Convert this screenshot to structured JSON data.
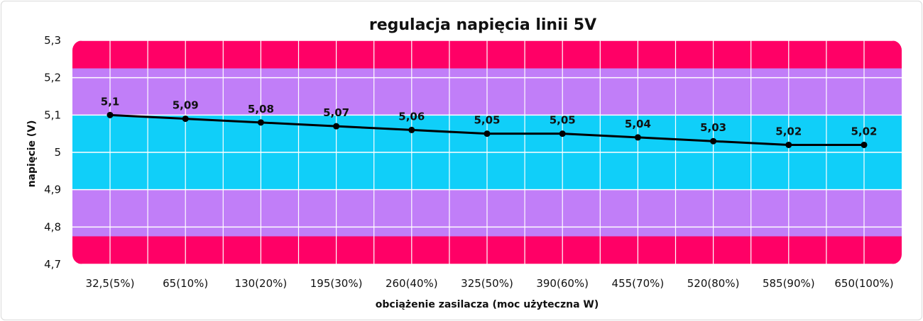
{
  "chart_data": {
    "type": "line",
    "title": "regulacja napięcia linii 5V",
    "xlabel": "obciążenie zasilacza (moc użyteczna W)",
    "ylabel": "napięcie (V)",
    "categories": [
      "32,5(5%)",
      "65(10%)",
      "130(20%)",
      "195(30%)",
      "260(40%)",
      "325(50%)",
      "390(60%)",
      "455(70%)",
      "520(80%)",
      "585(90%)",
      "650(100%)"
    ],
    "series": [
      {
        "values": [
          5.1,
          5.09,
          5.08,
          5.07,
          5.06,
          5.05,
          5.05,
          5.04,
          5.03,
          5.02,
          5.02
        ],
        "data_labels": [
          "5,1",
          "5,09",
          "5,08",
          "5,07",
          "5,06",
          "5,05",
          "5,05",
          "5,04",
          "5,03",
          "5,02",
          "5,02"
        ],
        "color": "#000000"
      }
    ],
    "ylim": [
      4.7,
      5.3
    ],
    "yticks": [
      {
        "value": 5.3,
        "label": "5,3"
      },
      {
        "value": 5.2,
        "label": "5,2"
      },
      {
        "value": 5.1,
        "label": "5,1"
      },
      {
        "value": 5.0,
        "label": "5"
      },
      {
        "value": 4.9,
        "label": "4,9"
      },
      {
        "value": 4.8,
        "label": "4,8"
      },
      {
        "value": 4.7,
        "label": "4,7"
      }
    ],
    "grid": true,
    "bands": [
      {
        "from": 5.225,
        "to": 5.3,
        "color": "#ff0066"
      },
      {
        "from": 5.1,
        "to": 5.225,
        "color": "#c17ef8"
      },
      {
        "from": 4.9,
        "to": 5.1,
        "color": "#10cff9"
      },
      {
        "from": 4.775,
        "to": 4.9,
        "color": "#c17ef8"
      },
      {
        "from": 4.7,
        "to": 4.775,
        "color": "#ff0066"
      }
    ]
  }
}
